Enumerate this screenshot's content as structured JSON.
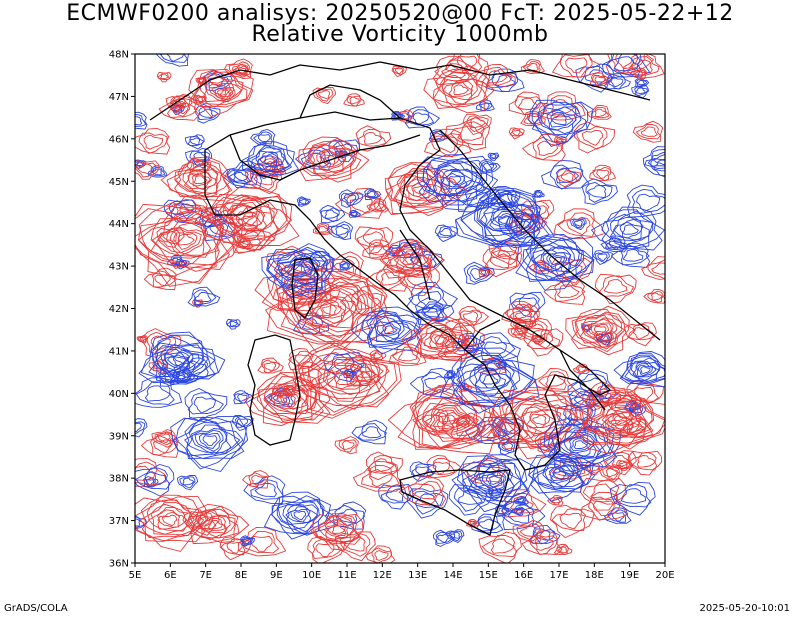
{
  "title_line1": "ECMWF0200 analisys: 20250520@00 FcT: 2025-05-22+12",
  "title_line2": "Relative Vorticity 1000mb",
  "lon_ticks": [
    "5E",
    "6E",
    "7E",
    "8E",
    "9E",
    "10E",
    "11E",
    "12E",
    "13E",
    "14E",
    "15E",
    "16E",
    "17E",
    "18E",
    "19E",
    "20E"
  ],
  "lat_ticks": [
    "48N",
    "47N",
    "46N",
    "45N",
    "44N",
    "43N",
    "42N",
    "41N",
    "40N",
    "39N",
    "38N",
    "37N",
    "36N"
  ],
  "footer_left": "GrADS/COLA",
  "footer_right": "2025-05-20-10:01",
  "colors": {
    "positive_contour": "#e83a3a",
    "negative_contour": "#2a45e0",
    "coastline": "#000000",
    "frame": "#000000"
  }
}
